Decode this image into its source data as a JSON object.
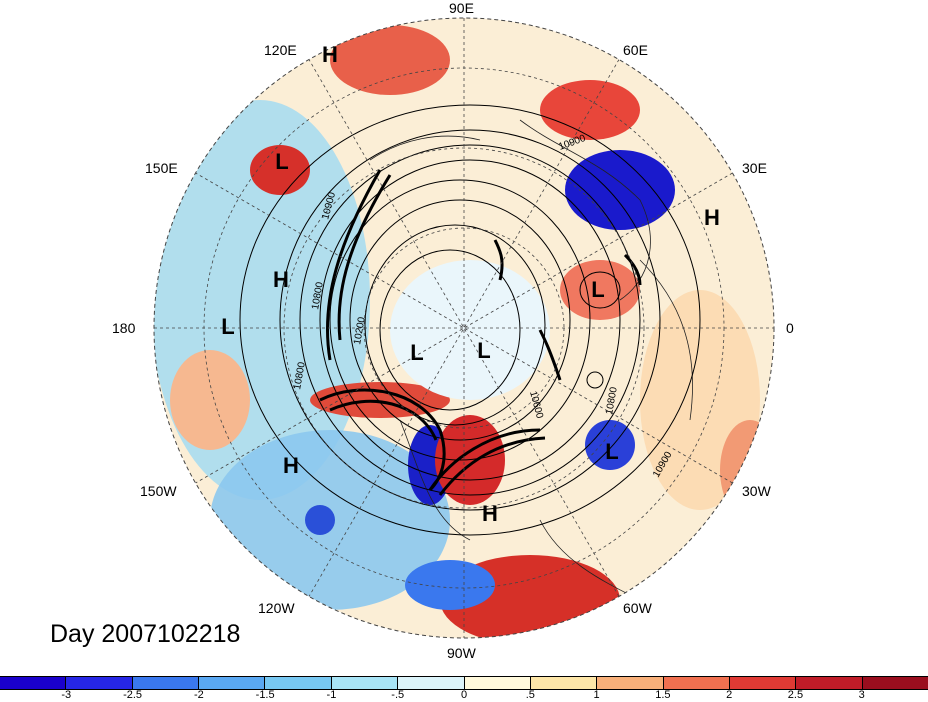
{
  "title": "Day 2007102218",
  "longitude_labels": [
    {
      "text": "90E"
    },
    {
      "text": "60E"
    },
    {
      "text": "30E"
    },
    {
      "text": "0"
    },
    {
      "text": "30W"
    },
    {
      "text": "60W"
    },
    {
      "text": "90W"
    },
    {
      "text": "120W"
    },
    {
      "text": "150W"
    },
    {
      "text": "180"
    },
    {
      "text": "150E"
    },
    {
      "text": "120E"
    }
  ],
  "pressure_centers": [
    {
      "type": "H"
    },
    {
      "type": "L"
    },
    {
      "type": "H"
    },
    {
      "type": "L"
    },
    {
      "type": "L"
    },
    {
      "type": "L"
    },
    {
      "type": "H"
    },
    {
      "type": "L"
    },
    {
      "type": "H"
    },
    {
      "type": "L"
    },
    {
      "type": "H"
    }
  ],
  "contour_labels": [
    "10900",
    "10900",
    "10800",
    "10800",
    "10200",
    "10600",
    "10800",
    "10900"
  ],
  "colorbar": {
    "ticks": [
      "-3",
      "-2.5",
      "-2",
      "-1.5",
      "-1",
      "-.5",
      "0",
      ".5",
      "1",
      "1.5",
      "2",
      "2.5",
      "3"
    ],
    "colors": [
      "#1a00cc",
      "#2626e6",
      "#3a78ee",
      "#5aa8f2",
      "#78c8f2",
      "#a8e4f6",
      "#dcf4fa",
      "#fff9dc",
      "#fde6a8",
      "#f8b07a",
      "#f07050",
      "#e03a34",
      "#c01c28",
      "#9a0e1e"
    ]
  }
}
